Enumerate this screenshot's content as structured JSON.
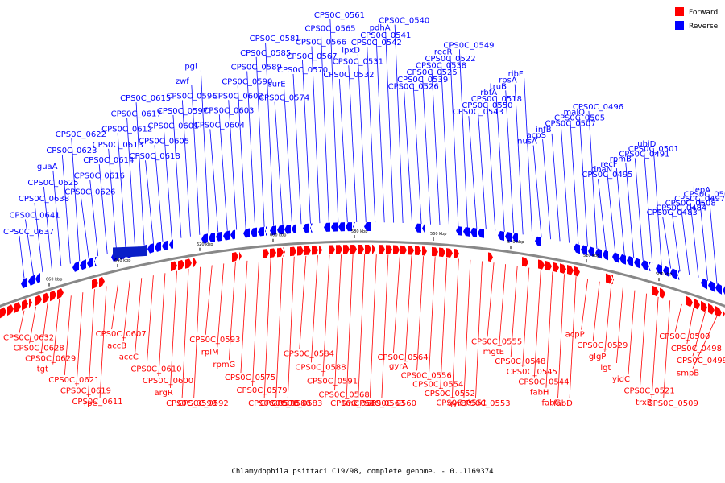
{
  "caption": "Chlamydophila psittaci C19/98, complete genome. - 0..1169374",
  "legend": [
    {
      "label": "Forward",
      "color": "#ff0000"
    },
    {
      "label": "Reverse",
      "color": "#0000ff"
    }
  ],
  "colors": {
    "forward": "#ff0000",
    "reverse": "#0000ff",
    "backbone": "#888888"
  },
  "ticks": [
    "660 kbp",
    "640 kbp",
    "620 kbp",
    "600 kbp",
    "580 kbp",
    "560 kbp",
    "540 kbp",
    "520 kbp",
    "500 kbp"
  ],
  "reverse_labels": [
    "CPS0C_0637",
    "CPS0C_0641",
    "CPS0C_0638",
    "CPS0C_0625",
    "guaA",
    "CPS0C_0623",
    "CPS0C_0622",
    "CPS0C_0626",
    "CPS0C_0616",
    "CPS0C_0614",
    "CPS0C_0613",
    "CPS0C_0612",
    "CPS0C_0617",
    "CPS0C_0615",
    "CPS0C_0618",
    "CPS0C_0605",
    "CPS0C_0601",
    "CPS0C_0597",
    "CPS0C_0596",
    "zwf",
    "pgl",
    "CPS0C_0604",
    "CPS0C_0603",
    "CPS0C_0602",
    "CPS0C_0590",
    "CPS0C_0589",
    "CPS0C_0585",
    "CPS0C_0581",
    "CPS0C_0574",
    "surE",
    "CPS0C_0570",
    "CPS0C_0567",
    "CPS0C_0566",
    "CPS0C_0565",
    "CPS0C_0561",
    "CPS0C_0532",
    "CPS0C_0531",
    "lpxD",
    "CPS0C_0542",
    "CPS0C_0541",
    "pdhA",
    "CPS0C_0540",
    "CPS0C_0526",
    "CPS0C_0539",
    "CPS0C_0525",
    "CPS0C_0538",
    "CPS0C_0522",
    "recR",
    "CPS0C_0549",
    "CPS0C_0543",
    "CPS0C_0550",
    "CPS0C_0518",
    "rbfA",
    "truB",
    "rpsA",
    "ribF",
    "nusA",
    "acpS",
    "infB",
    "CPS0C_0507",
    "CPS0C_0505",
    "malQ",
    "CPS0C_0496",
    "CPS0C_0495",
    "dnaN",
    "recF",
    "rpmB",
    "CPS0C_0491",
    "CPS0C_0501",
    "ubiD",
    "CPS0C_0483",
    "CPS0C_0484",
    "CPS0C_0508",
    "CPS0C_0497",
    "CPS0C_0506",
    "lepA"
  ],
  "forward_labels": [
    "CPS0C_0632",
    "CPS0C_0628",
    "CPS0C_0629",
    "tgt",
    "CPS0C_0621",
    "CPS0C_0619",
    "CPS0C_0611",
    "rpe",
    "CPS0C_0607",
    "accB",
    "accC",
    "CPS0C_0610",
    "CPS0C_0600",
    "argR",
    "CPS0C_0599",
    "CPS0C_0592",
    "CPS0C_0593",
    "rplM",
    "rpmG",
    "CPS0C_0575",
    "CPS0C_0579",
    "CPS0C_0578",
    "CPS0C_0580",
    "CPS0C_0583",
    "CPS0C_0584",
    "CPS0C_0588",
    "CPS0C_0591",
    "CPS0C_0568",
    "CPS0C_0569",
    "tmk",
    "CPS0C_0563",
    "CPS0C_0560",
    "CPS0C_0564",
    "gyrA",
    "CPS0C_0556",
    "CPS0C_0554",
    "CPS0C_0552",
    "CPS0C_0551",
    "gyrB",
    "CPS0C_0553",
    "CPS0C_0555",
    "mgtE",
    "CPS0C_0548",
    "CPS0C_0545",
    "CPS0C_0544",
    "fabH",
    "fabG",
    "fabD",
    "acpP",
    "CPS0C_0529",
    "glgP",
    "lgt",
    "yidC",
    "CPS0C_0521",
    "trxB",
    "CPS0C_0509",
    "CPS0C_0500",
    "CPS0C_0498",
    "CPS0C_0499",
    "smpB"
  ]
}
